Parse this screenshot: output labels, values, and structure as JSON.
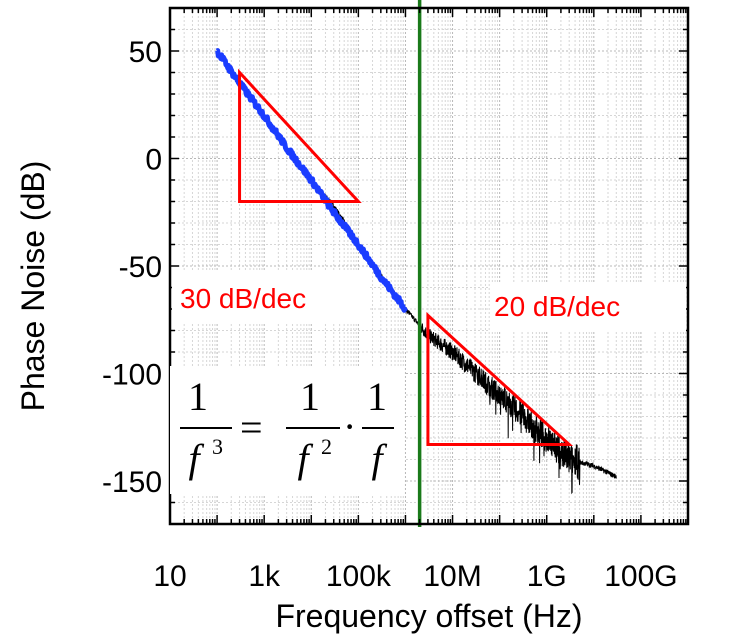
{
  "chart_data": {
    "type": "line",
    "x_scale": "log",
    "xlim": [
      10,
      1000000000000.0
    ],
    "ylim": [
      -170,
      70
    ],
    "xlabel": "Frequency offset (Hz)",
    "ylabel": "Phase Noise (dB)",
    "x_ticks": [
      {
        "value": 10,
        "label": "10"
      },
      {
        "value": 1000,
        "label": "1k"
      },
      {
        "value": 100000,
        "label": "100k"
      },
      {
        "value": 10000000,
        "label": "10M"
      },
      {
        "value": 1000000000,
        "label": "1G"
      },
      {
        "value": 100000000000,
        "label": "100G"
      }
    ],
    "y_ticks": [
      {
        "value": 50,
        "label": "50"
      },
      {
        "value": 0,
        "label": "0"
      },
      {
        "value": -50,
        "label": "-50"
      },
      {
        "value": -100,
        "label": "-100"
      },
      {
        "value": -150,
        "label": "-150"
      }
    ],
    "grid": true,
    "series": [
      {
        "color": "#1a3cff",
        "style": "thick measured trace",
        "x": [
          100,
          300,
          1000,
          3000,
          10000,
          30000,
          100000,
          300000,
          1000000
        ],
        "y": [
          50,
          35,
          20,
          5,
          -10,
          -25,
          -40,
          -55,
          -70
        ]
      },
      {
        "color": "#000000",
        "style": "thin noisy trace",
        "x": [
          10000,
          30000,
          100000,
          1000000,
          3000000,
          10000000,
          100000000,
          1000000000,
          3000000000,
          10000000000,
          30000000000
        ],
        "y": [
          -10,
          -22,
          -40,
          -70,
          -82,
          -90,
          -110,
          -130,
          -140,
          -143,
          -148
        ]
      }
    ],
    "vertical_line": {
      "x": 2000000,
      "color": "#1a7a1a"
    },
    "slope_triangles": [
      {
        "color": "#ff0000",
        "x0": 300,
        "x1": 100000,
        "y_top": 40,
        "y_bottom": -20
      },
      {
        "color": "#ff0000",
        "x0": 3000000,
        "x1": 3000000000,
        "y_top": -73,
        "y_bottom": -133
      }
    ],
    "annotations": [
      {
        "text": "30 dB/dec",
        "color": "#ff0000"
      },
      {
        "text": "20 dB/dec",
        "color": "#ff0000"
      }
    ],
    "formula": {
      "numerator_left": "1",
      "denominator_left": "f",
      "exp_left": "3",
      "equals": "=",
      "numerator_mid": "1",
      "denominator_mid": "f",
      "exp_mid": "2",
      "dot": "·",
      "numerator_right": "1",
      "denominator_right": "f"
    }
  }
}
